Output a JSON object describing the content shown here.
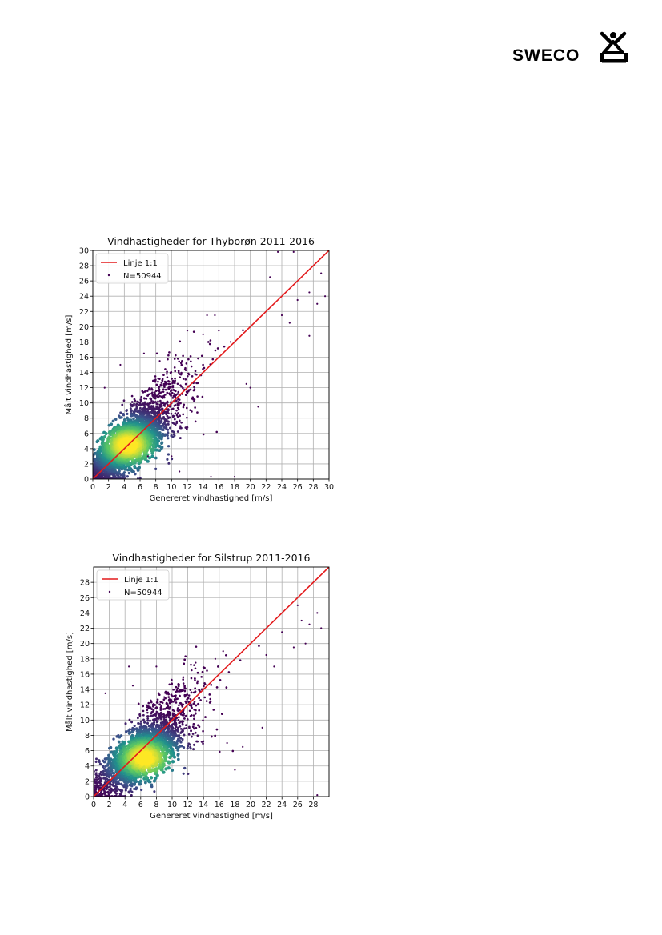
{
  "header": {
    "logo_text": "SWECO"
  },
  "chart_data": [
    {
      "type": "scatter",
      "title": "Vindhastigheder for Thyborøn 2011-2016",
      "xlabel": "Genereret vindhastighed [m/s]",
      "ylabel": "Målt vindhastighed [m/s]",
      "xlim": [
        0,
        30
      ],
      "ylim": [
        0,
        30
      ],
      "xticks": [
        0,
        2,
        4,
        6,
        8,
        10,
        12,
        14,
        16,
        18,
        20,
        22,
        24,
        26,
        28,
        30
      ],
      "yticks": [
        0,
        2,
        4,
        6,
        8,
        10,
        12,
        14,
        16,
        18,
        20,
        22,
        24,
        26,
        28,
        30
      ],
      "grid": true,
      "legend_position": "top-left",
      "legend": [
        "Linje 1:1",
        "N=50944"
      ],
      "series": [
        {
          "name": "Linje 1:1",
          "kind": "line",
          "color": "#e31a1c",
          "x": [
            0,
            30
          ],
          "y": [
            0,
            30
          ]
        },
        {
          "name": "N=50944",
          "kind": "scatter-density",
          "colormap": "viridis",
          "count": 50944,
          "density_peak": {
            "x": 4.5,
            "y": 4.5
          },
          "outliers": [
            [
              22.5,
              26.5
            ],
            [
              23.5,
              29.8
            ],
            [
              25.5,
              29.8
            ],
            [
              29.0,
              27.0
            ],
            [
              29.5,
              24.0
            ],
            [
              27.5,
              24.5
            ],
            [
              26.0,
              23.5
            ],
            [
              28.5,
              23.0
            ],
            [
              24.0,
              21.5
            ],
            [
              25.0,
              20.5
            ],
            [
              27.5,
              18.8
            ],
            [
              21.0,
              9.5
            ],
            [
              20.0,
              12.0
            ],
            [
              19.5,
              12.5
            ],
            [
              8.5,
              15.5
            ],
            [
              6.5,
              16.5
            ],
            [
              3.5,
              15.0
            ],
            [
              7.0,
              3.0
            ],
            [
              10.0,
              3.0
            ],
            [
              11.0,
              1.0
            ],
            [
              18.0,
              0.3
            ],
            [
              15.0,
              0.3
            ],
            [
              1.5,
              12.0
            ],
            [
              14.5,
              21.5
            ],
            [
              15.5,
              21.5
            ],
            [
              16.0,
              19.5
            ],
            [
              17.5,
              18.0
            ],
            [
              12.0,
              19.5
            ],
            [
              14.0,
              19.0
            ]
          ]
        }
      ]
    },
    {
      "type": "scatter",
      "title": "Vindhastigheder for Silstrup 2011-2016",
      "xlabel": "Genereret vindhastighed [m/s]",
      "ylabel": "Målt vindhastighed [m/s]",
      "xlim": [
        0,
        30
      ],
      "ylim": [
        0,
        30
      ],
      "xticks": [
        0,
        2,
        4,
        6,
        8,
        10,
        12,
        14,
        16,
        18,
        20,
        22,
        24,
        26,
        28
      ],
      "yticks": [
        0,
        2,
        4,
        6,
        8,
        10,
        12,
        14,
        16,
        18,
        20,
        22,
        24,
        26,
        28
      ],
      "grid": true,
      "legend_position": "top-left",
      "legend": [
        "Linje 1:1",
        "N=50944"
      ],
      "series": [
        {
          "name": "Linje 1:1",
          "kind": "line",
          "color": "#e31a1c",
          "x": [
            0,
            30
          ],
          "y": [
            0,
            30
          ]
        },
        {
          "name": "N=50944",
          "kind": "scatter-density",
          "colormap": "viridis",
          "count": 50944,
          "density_peak": {
            "x": 6.5,
            "y": 5.0
          },
          "outliers": [
            [
              28.5,
              24.0
            ],
            [
              29.0,
              22.0
            ],
            [
              27.5,
              22.5
            ],
            [
              26.5,
              23.0
            ],
            [
              25.5,
              19.5
            ],
            [
              27.0,
              20.0
            ],
            [
              26.0,
              25.0
            ],
            [
              24.0,
              21.5
            ],
            [
              23.0,
              17.0
            ],
            [
              22.0,
              18.5
            ],
            [
              21.5,
              9.0
            ],
            [
              18.0,
              3.5
            ],
            [
              9.0,
              13.0
            ],
            [
              8.0,
              17.0
            ],
            [
              4.5,
              17.0
            ],
            [
              13.0,
              17.5
            ],
            [
              12.5,
              16.5
            ],
            [
              5.0,
              14.5
            ],
            [
              1.5,
              13.5
            ],
            [
              19.0,
              6.5
            ],
            [
              17.0,
              7.0
            ],
            [
              28.5,
              0.2
            ],
            [
              16.5,
              19.0
            ],
            [
              15.5,
              18.0
            ]
          ]
        }
      ]
    }
  ]
}
